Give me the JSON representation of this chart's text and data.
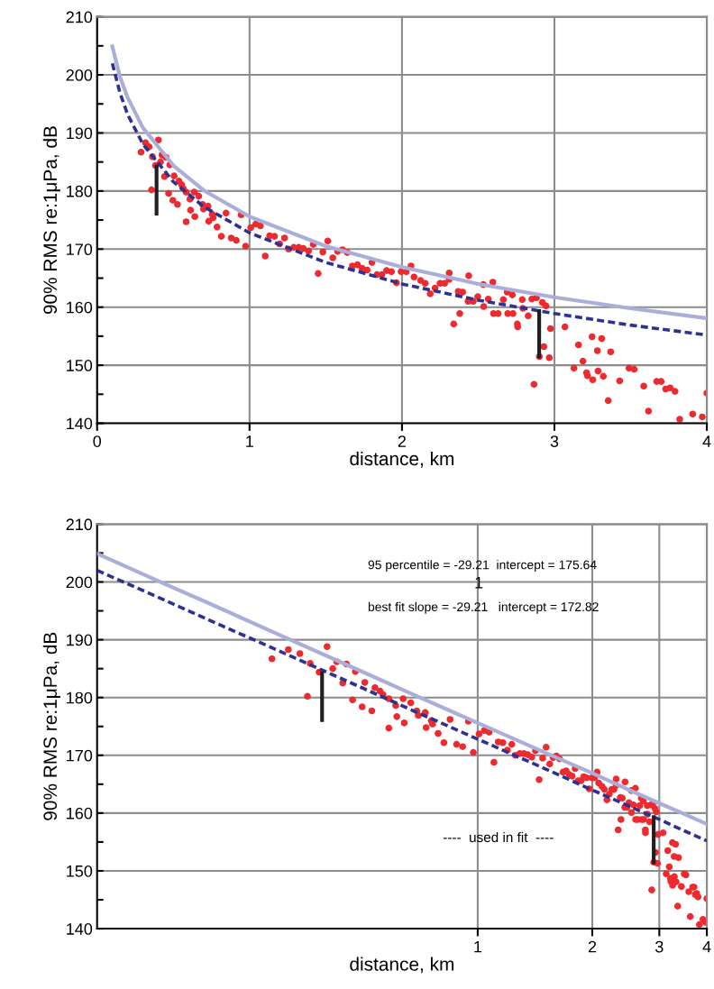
{
  "chart_data": [
    {
      "type": "scatter",
      "xlabel": "distance, km",
      "ylabel": "90% RMS re:1μPa, dB",
      "xlim": [
        0,
        4
      ],
      "xticks": [
        0,
        1,
        2,
        3,
        4
      ],
      "ylim": [
        140,
        210
      ],
      "yticks": [
        140,
        {
          "value": 145,
          "label": null
        },
        150,
        {
          "value": 155,
          "label": null
        },
        160,
        {
          "value": 165,
          "label": null
        },
        170,
        {
          "value": 175,
          "label": null
        },
        180,
        {
          "value": 185,
          "label": null
        },
        190,
        {
          "value": 195,
          "label": null
        },
        200,
        {
          "value": 205,
          "label": null
        },
        210
      ],
      "grid": true,
      "series": [
        {
          "type": "line",
          "color": "#abaed8",
          "line_style": "solid",
          "x": [
            0.1,
            0.15,
            0.2,
            0.3,
            0.5,
            0.7,
            1,
            1.5,
            2,
            2.5,
            3,
            3.5,
            4
          ],
          "values": [
            204.9,
            199.7,
            196.1,
            190.9,
            184.4,
            180.1,
            175.6,
            170.5,
            166.9,
            164.0,
            161.7,
            159.8,
            158.1
          ]
        },
        {
          "type": "line",
          "color": "#2e3192",
          "line_style": "dashed",
          "x": [
            0.1,
            0.15,
            0.2,
            0.3,
            0.5,
            0.7,
            1,
            1.5,
            2,
            2.5,
            3,
            3.5,
            4
          ],
          "values": [
            202.0,
            196.9,
            193.2,
            188.1,
            181.6,
            177.3,
            172.8,
            167.7,
            164.0,
            161.2,
            158.9,
            156.9,
            155.2
          ]
        },
        {
          "type": "line",
          "color": "#231f20",
          "line_style": "solid",
          "x": [
            0.39,
            0.39
          ],
          "values": [
            184.2,
            176.1
          ]
        },
        {
          "type": "line",
          "color": "#231f20",
          "line_style": "solid",
          "x": [
            2.9,
            2.9
          ],
          "values": [
            159.3,
            151.5
          ]
        },
        {
          "marker": "circle",
          "color": "#ec2a2f",
          "x": [
            0.288,
            0.318,
            0.341,
            0.363,
            0.402,
            0.383,
            0.416,
            0.426,
            0.452,
            0.477,
            0.357,
            0.442,
            0.505,
            0.537,
            0.554,
            0.564,
            0.584,
            0.469,
            0.497,
            0.527,
            0.609,
            0.637,
            0.667,
            0.692,
            0.698,
            0.728,
            0.613,
            0.641,
            0.584,
            0.732,
            0.755,
            0.761,
            0.787,
            0.815,
            0.846,
            0.88,
            0.913,
            0.945,
            0.974,
            1.008,
            1.041,
            1.071,
            1.103,
            1.132,
            1.164,
            1.197,
            1.229,
            1.256,
            1.29,
            1.323,
            1.353,
            1.387,
            1.418,
            1.45,
            1.481,
            1.513,
            1.546,
            1.578,
            1.609,
            1.641,
            1.675,
            1.708,
            1.738,
            1.771,
            1.803,
            1.836,
            1.868,
            1.899,
            1.931,
            1.964,
            1.994,
            2.028,
            2.059,
            2.079,
            2.122,
            2.152,
            2.185,
            2.217,
            2.25,
            2.28,
            2.31,
            2.31,
            2.339,
            2.369,
            2.398,
            2.379,
            2.438,
            2.434,
            2.467,
            2.497,
            2.533,
            2.536,
            2.566,
            2.596,
            2.6,
            2.631,
            2.665,
            2.69,
            2.724,
            2.694,
            2.728,
            2.757,
            2.759,
            2.789,
            2.793,
            2.828,
            2.852,
            2.882,
            2.921,
            2.945,
            2.866,
            2.901,
            2.931,
            2.966,
            2.974,
            3.069,
            3.128,
            3.158,
            3.187,
            3.211,
            3.217,
            3.247,
            3.251,
            3.282,
            3.286,
            3.31,
            3.321,
            3.353,
            3.369,
            3.428,
            3.489,
            3.523,
            3.586,
            3.617,
            3.671,
            3.7,
            3.73,
            3.759,
            3.791,
            3.822,
            3.907,
            3.97,
            4.0
          ],
          "values": [
            186.7,
            188.3,
            187.6,
            185.9,
            188.8,
            184.4,
            185.0,
            186.2,
            185.8,
            184.5,
            180.2,
            182.5,
            182.6,
            181.7,
            181.1,
            180.5,
            179.8,
            179.6,
            178.4,
            177.7,
            178.6,
            179.8,
            179.1,
            177.7,
            176.9,
            177.4,
            176.7,
            175.6,
            174.7,
            174.8,
            176.0,
            175.4,
            173.8,
            172.2,
            176.2,
            171.9,
            171.5,
            175.9,
            170.5,
            173.7,
            174.3,
            174.0,
            168.8,
            172.3,
            172.2,
            170.9,
            171.9,
            170.0,
            170.3,
            170.3,
            170.1,
            169.7,
            170.8,
            165.8,
            169.5,
            171.4,
            168.5,
            169.6,
            169.9,
            169.4,
            167.1,
            167.3,
            166.7,
            166.4,
            167.7,
            165.6,
            165.6,
            166.3,
            166.1,
            164.2,
            166.1,
            166.1,
            167.1,
            165.2,
            164.6,
            164.1,
            162.3,
            163.3,
            164.1,
            164.1,
            165.9,
            164.8,
            157.1,
            162.7,
            162.6,
            158.9,
            165.4,
            161.0,
            161.0,
            161.8,
            163.9,
            160.1,
            161.4,
            164.3,
            158.9,
            158.9,
            161.3,
            162.6,
            162.1,
            158.9,
            158.9,
            157.1,
            156.6,
            161.3,
            159.8,
            158.5,
            161.4,
            161.6,
            160.8,
            160.2,
            146.7,
            151.5,
            153.2,
            151.3,
            156.3,
            156.6,
            149.5,
            153.5,
            150.7,
            148.7,
            148.2,
            154.9,
            147.5,
            152.5,
            149.0,
            154.6,
            148.1,
            143.9,
            152.3,
            147.3,
            149.5,
            149.3,
            146.4,
            142.1,
            147.2,
            147.2,
            145.9,
            146.1,
            145.5,
            140.7,
            141.6,
            141.1,
            145.2
          ]
        }
      ]
    },
    {
      "type": "scatter",
      "xlabel": "distance, km",
      "ylabel": "90% RMS re:1μPa, dB",
      "log": "x",
      "xlim": [
        0.1,
        4
      ],
      "xticks": [
        1,
        2,
        3,
        4
      ],
      "ylim": [
        140,
        210
      ],
      "yticks": [
        140,
        {
          "value": 145,
          "label": null
        },
        150,
        {
          "value": 155,
          "label": null
        },
        160,
        {
          "value": 165,
          "label": null
        },
        170,
        {
          "value": 175,
          "label": null
        },
        180,
        {
          "value": 185,
          "label": null
        },
        190,
        {
          "value": 195,
          "label": null
        },
        200,
        {
          "value": 205,
          "label": null
        },
        210
      ],
      "grid": true,
      "annotations": [
        "95 percentile = -29.21  intercept = 175.64",
        "1",
        "best fit slope = -29.21   intercept = 172.82",
        "----  used in fit  ----"
      ],
      "series": [
        {
          "type": "line",
          "color": "#abaed8",
          "line_style": "solid",
          "x": [
            0.1,
            0.15,
            0.2,
            0.3,
            0.5,
            0.7,
            1,
            1.5,
            2,
            2.5,
            3,
            3.5,
            4
          ],
          "values": [
            204.9,
            199.7,
            196.1,
            190.9,
            184.4,
            180.1,
            175.6,
            170.5,
            166.9,
            164.0,
            161.7,
            159.8,
            158.1
          ]
        },
        {
          "type": "line",
          "color": "#2e3192",
          "line_style": "dashed",
          "x": [
            0.1,
            0.15,
            0.2,
            0.3,
            0.5,
            0.7,
            1,
            1.5,
            2,
            2.5,
            3,
            3.5,
            4
          ],
          "values": [
            202.0,
            196.9,
            193.2,
            188.1,
            181.6,
            177.3,
            172.8,
            167.7,
            164.0,
            161.2,
            158.9,
            156.9,
            155.2
          ]
        },
        {
          "type": "line",
          "color": "#231f20",
          "line_style": "solid",
          "x": [
            0.39,
            0.39
          ],
          "values": [
            184.2,
            176.1
          ]
        },
        {
          "type": "line",
          "color": "#231f20",
          "line_style": "solid",
          "x": [
            2.9,
            2.9
          ],
          "values": [
            159.3,
            151.5
          ]
        },
        {
          "marker": "circle",
          "color": "#ec2a2f",
          "x": [
            0.288,
            0.318,
            0.341,
            0.363,
            0.402,
            0.383,
            0.416,
            0.426,
            0.452,
            0.477,
            0.357,
            0.442,
            0.505,
            0.537,
            0.554,
            0.564,
            0.584,
            0.469,
            0.497,
            0.527,
            0.609,
            0.637,
            0.667,
            0.692,
            0.698,
            0.728,
            0.613,
            0.641,
            0.584,
            0.732,
            0.755,
            0.761,
            0.787,
            0.815,
            0.846,
            0.88,
            0.913,
            0.945,
            0.974,
            1.008,
            1.041,
            1.071,
            1.103,
            1.132,
            1.164,
            1.197,
            1.229,
            1.256,
            1.29,
            1.323,
            1.353,
            1.387,
            1.418,
            1.45,
            1.481,
            1.513,
            1.546,
            1.578,
            1.609,
            1.641,
            1.675,
            1.708,
            1.738,
            1.771,
            1.803,
            1.836,
            1.868,
            1.899,
            1.931,
            1.964,
            1.994,
            2.028,
            2.059,
            2.079,
            2.122,
            2.152,
            2.185,
            2.217,
            2.25,
            2.28,
            2.31,
            2.31,
            2.339,
            2.369,
            2.398,
            2.379,
            2.438,
            2.434,
            2.467,
            2.497,
            2.533,
            2.536,
            2.566,
            2.596,
            2.6,
            2.631,
            2.665,
            2.69,
            2.724,
            2.694,
            2.728,
            2.757,
            2.759,
            2.789,
            2.793,
            2.828,
            2.852,
            2.882,
            2.921,
            2.945,
            2.866,
            2.901,
            2.931,
            2.966,
            2.974,
            3.069,
            3.128,
            3.158,
            3.187,
            3.211,
            3.217,
            3.247,
            3.251,
            3.282,
            3.286,
            3.31,
            3.321,
            3.353,
            3.369,
            3.428,
            3.489,
            3.523,
            3.586,
            3.617,
            3.671,
            3.7,
            3.73,
            3.759,
            3.791,
            3.822,
            3.907,
            3.97,
            4.0
          ],
          "values": [
            186.7,
            188.3,
            187.6,
            185.9,
            188.8,
            184.4,
            185.0,
            186.2,
            185.8,
            184.5,
            180.2,
            182.5,
            182.6,
            181.7,
            181.1,
            180.5,
            179.8,
            179.6,
            178.4,
            177.7,
            178.6,
            179.8,
            179.1,
            177.7,
            176.9,
            177.4,
            176.7,
            175.6,
            174.7,
            174.8,
            176.0,
            175.4,
            173.8,
            172.2,
            176.2,
            171.9,
            171.5,
            175.9,
            170.5,
            173.7,
            174.3,
            174.0,
            168.8,
            172.3,
            172.2,
            170.9,
            171.9,
            170.0,
            170.3,
            170.3,
            170.1,
            169.7,
            170.8,
            165.8,
            169.5,
            171.4,
            168.5,
            169.6,
            169.9,
            169.4,
            167.1,
            167.3,
            166.7,
            166.4,
            167.7,
            165.6,
            165.6,
            166.3,
            166.1,
            164.2,
            166.1,
            166.1,
            167.1,
            165.2,
            164.6,
            164.1,
            162.3,
            163.3,
            164.1,
            164.1,
            165.9,
            164.8,
            157.1,
            162.7,
            162.6,
            158.9,
            165.4,
            161.0,
            161.0,
            161.8,
            163.9,
            160.1,
            161.4,
            164.3,
            158.9,
            158.9,
            161.3,
            162.6,
            162.1,
            158.9,
            158.9,
            157.1,
            156.6,
            161.3,
            159.8,
            158.5,
            161.4,
            161.6,
            160.8,
            160.2,
            146.7,
            151.5,
            153.2,
            151.3,
            156.3,
            156.6,
            149.5,
            153.5,
            150.7,
            148.7,
            148.2,
            154.9,
            147.5,
            152.5,
            149.0,
            154.6,
            148.1,
            143.9,
            152.3,
            147.3,
            149.5,
            149.3,
            146.4,
            142.1,
            147.2,
            147.2,
            145.9,
            146.1,
            145.5,
            140.7,
            141.6,
            141.1,
            145.2
          ]
        }
      ]
    }
  ]
}
